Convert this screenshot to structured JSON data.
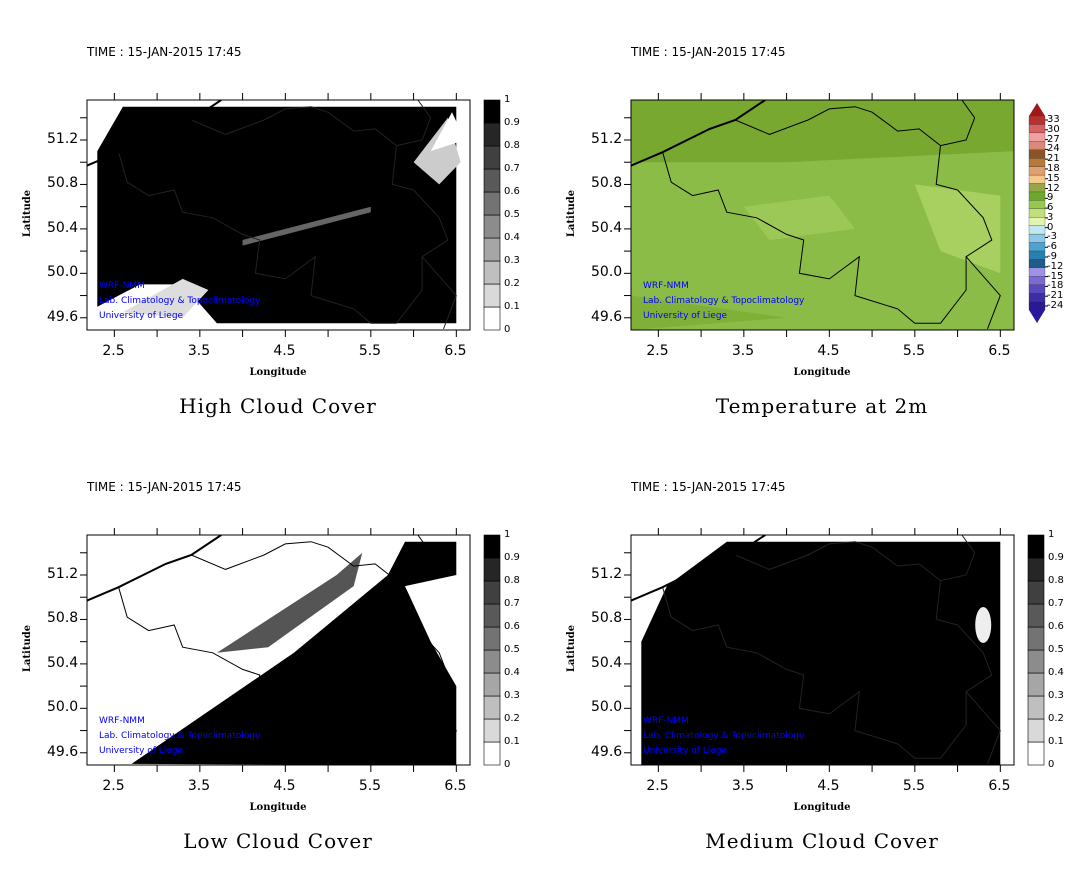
{
  "chart_data": [
    {
      "type": "heatmap",
      "variable": "high_cloud",
      "title": "High Cloud Cover",
      "time_label": "TIME : 15-JAN-2015 17:45",
      "xlabel": "Longitude",
      "ylabel": "Latitude",
      "xticks": [
        "2.5",
        "3.5",
        "4.5",
        "5.5",
        "6.5"
      ],
      "yticks": [
        "49.6",
        "50.0",
        "50.4",
        "50.8",
        "51.2"
      ],
      "xlim": [
        2.18,
        6.66
      ],
      "ylim": [
        49.49,
        51.56
      ],
      "colorbar": {
        "min": 0,
        "max": 1,
        "labels": [
          "0",
          "0.1",
          "0.2",
          "0.3",
          "0.4",
          "0.5",
          "0.6",
          "0.7",
          "0.8",
          "0.9",
          "1"
        ]
      }
    },
    {
      "type": "heatmap",
      "variable": "temperature_2m",
      "title": "Temperature at 2m",
      "time_label": "TIME : 15-JAN-2015 17:45",
      "xlabel": "Longitude",
      "ylabel": "Latitude",
      "xticks": [
        "2.5",
        "3.5",
        "4.5",
        "5.5",
        "6.5"
      ],
      "yticks": [
        "49.6",
        "50.0",
        "50.4",
        "50.8",
        "51.2"
      ],
      "xlim": [
        2.18,
        6.66
      ],
      "ylim": [
        49.49,
        51.56
      ],
      "colorbar": {
        "min": -24,
        "max": 33,
        "labels": [
          "-24",
          "-21",
          "-18",
          "-15",
          "-12",
          "-9",
          "-6",
          "-3",
          "0",
          "3",
          "6",
          "9",
          "12",
          "15",
          "18",
          "21",
          "24",
          "27",
          "30",
          "33"
        ]
      }
    },
    {
      "type": "heatmap",
      "variable": "low_cloud",
      "title": "Low Cloud Cover",
      "time_label": "TIME : 15-JAN-2015 17:45",
      "xlabel": "Longitude",
      "ylabel": "Latitude",
      "xticks": [
        "2.5",
        "3.5",
        "4.5",
        "5.5",
        "6.5"
      ],
      "yticks": [
        "49.6",
        "50.0",
        "50.4",
        "50.8",
        "51.2"
      ],
      "xlim": [
        2.18,
        6.66
      ],
      "ylim": [
        49.49,
        51.56
      ],
      "colorbar": {
        "min": 0,
        "max": 1,
        "labels": [
          "0",
          "0.1",
          "0.2",
          "0.3",
          "0.4",
          "0.5",
          "0.6",
          "0.7",
          "0.8",
          "0.9",
          "1"
        ]
      }
    },
    {
      "type": "heatmap",
      "variable": "medium_cloud",
      "title": "Medium Cloud Cover",
      "time_label": "TIME : 15-JAN-2015 17:45",
      "xlabel": "Longitude",
      "ylabel": "Latitude",
      "xticks": [
        "2.5",
        "3.5",
        "4.5",
        "5.5",
        "6.5"
      ],
      "yticks": [
        "49.6",
        "50.0",
        "50.4",
        "50.8",
        "51.2"
      ],
      "xlim": [
        2.18,
        6.66
      ],
      "ylim": [
        49.49,
        51.56
      ],
      "colorbar": {
        "min": 0,
        "max": 1,
        "labels": [
          "0",
          "0.1",
          "0.2",
          "0.3",
          "0.4",
          "0.5",
          "0.6",
          "0.7",
          "0.8",
          "0.9",
          "1"
        ]
      }
    }
  ],
  "watermark": [
    "WRF-NMM",
    "Lab. Climatology & Topoclimatology",
    "University of Liege"
  ]
}
